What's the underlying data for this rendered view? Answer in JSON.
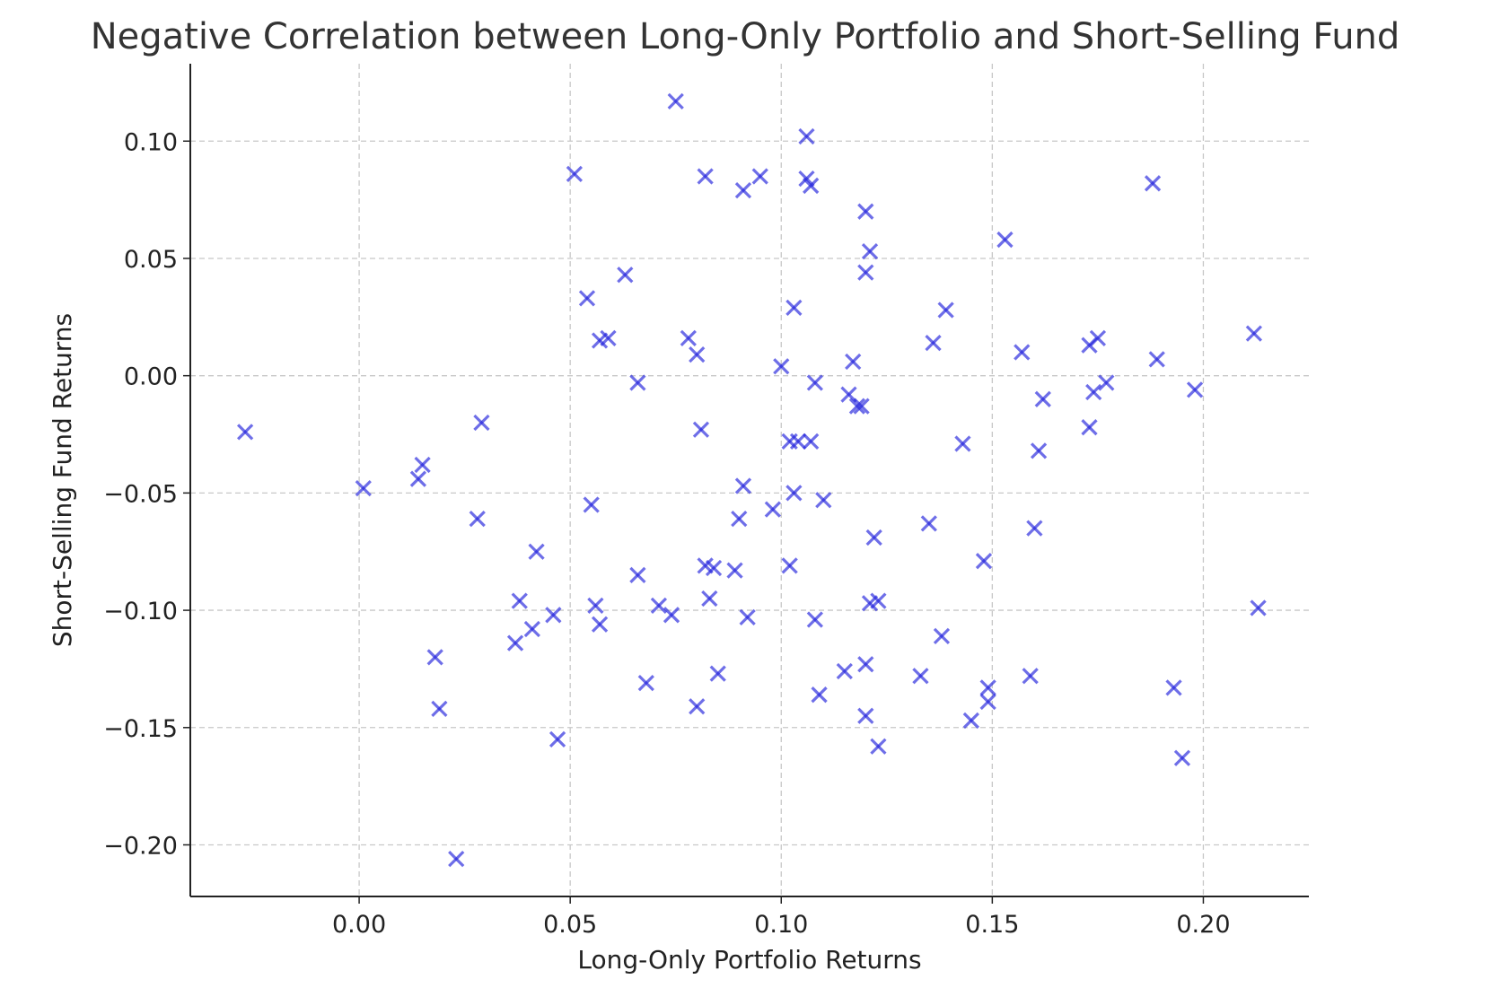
{
  "chart_data": {
    "type": "scatter",
    "title": "Negative Correlation between Long-Only Portfolio and Short-Selling Fund",
    "xlabel": "Long-Only Portfolio Returns",
    "ylabel": "Short-Selling Fund Returns",
    "xlim": [
      -0.04,
      0.225
    ],
    "ylim": [
      -0.222,
      0.133
    ],
    "xticks": [
      0.0,
      0.05,
      0.1,
      0.15,
      0.2
    ],
    "xtick_labels": [
      "0.00",
      "0.05",
      "0.10",
      "0.15",
      "0.20"
    ],
    "yticks": [
      0.1,
      0.05,
      0.0,
      -0.05,
      -0.1,
      -0.15,
      -0.2
    ],
    "ytick_labels": [
      "0.10",
      "0.05",
      "0.00",
      "−0.05",
      "−0.10",
      "−0.15",
      "−0.20"
    ],
    "grid": true,
    "marker": "x",
    "marker_color": "#2222dd",
    "points": [
      [
        -0.027,
        -0.024
      ],
      [
        0.001,
        -0.048
      ],
      [
        0.014,
        -0.044
      ],
      [
        0.015,
        -0.038
      ],
      [
        0.018,
        -0.12
      ],
      [
        0.019,
        -0.142
      ],
      [
        0.023,
        -0.206
      ],
      [
        0.028,
        -0.061
      ],
      [
        0.029,
        -0.02
      ],
      [
        0.037,
        -0.114
      ],
      [
        0.038,
        -0.096
      ],
      [
        0.041,
        -0.108
      ],
      [
        0.042,
        -0.075
      ],
      [
        0.046,
        -0.102
      ],
      [
        0.047,
        -0.155
      ],
      [
        0.051,
        0.086
      ],
      [
        0.054,
        0.033
      ],
      [
        0.055,
        -0.055
      ],
      [
        0.056,
        -0.098
      ],
      [
        0.057,
        -0.106
      ],
      [
        0.057,
        0.015
      ],
      [
        0.059,
        0.016
      ],
      [
        0.063,
        0.043
      ],
      [
        0.066,
        -0.003
      ],
      [
        0.066,
        -0.085
      ],
      [
        0.068,
        -0.131
      ],
      [
        0.071,
        -0.098
      ],
      [
        0.074,
        -0.102
      ],
      [
        0.075,
        0.117
      ],
      [
        0.078,
        0.016
      ],
      [
        0.08,
        0.009
      ],
      [
        0.08,
        -0.141
      ],
      [
        0.081,
        -0.023
      ],
      [
        0.082,
        0.085
      ],
      [
        0.082,
        -0.081
      ],
      [
        0.083,
        -0.095
      ],
      [
        0.084,
        -0.082
      ],
      [
        0.085,
        -0.127
      ],
      [
        0.089,
        -0.083
      ],
      [
        0.09,
        -0.061
      ],
      [
        0.091,
        -0.047
      ],
      [
        0.091,
        0.079
      ],
      [
        0.092,
        -0.103
      ],
      [
        0.095,
        0.085
      ],
      [
        0.098,
        -0.057
      ],
      [
        0.1,
        0.004
      ],
      [
        0.102,
        -0.081
      ],
      [
        0.102,
        -0.028
      ],
      [
        0.103,
        -0.05
      ],
      [
        0.103,
        0.029
      ],
      [
        0.104,
        -0.028
      ],
      [
        0.106,
        0.102
      ],
      [
        0.106,
        0.084
      ],
      [
        0.107,
        0.081
      ],
      [
        0.107,
        -0.028
      ],
      [
        0.108,
        -0.003
      ],
      [
        0.108,
        -0.104
      ],
      [
        0.109,
        -0.136
      ],
      [
        0.11,
        -0.053
      ],
      [
        0.115,
        -0.126
      ],
      [
        0.116,
        -0.008
      ],
      [
        0.117,
        0.006
      ],
      [
        0.118,
        -0.013
      ],
      [
        0.119,
        -0.013
      ],
      [
        0.12,
        0.07
      ],
      [
        0.12,
        0.044
      ],
      [
        0.12,
        -0.123
      ],
      [
        0.12,
        -0.145
      ],
      [
        0.121,
        0.053
      ],
      [
        0.121,
        -0.097
      ],
      [
        0.122,
        -0.069
      ],
      [
        0.123,
        -0.096
      ],
      [
        0.123,
        -0.158
      ],
      [
        0.133,
        -0.128
      ],
      [
        0.135,
        -0.063
      ],
      [
        0.136,
        0.014
      ],
      [
        0.138,
        -0.111
      ],
      [
        0.139,
        0.028
      ],
      [
        0.143,
        -0.029
      ],
      [
        0.145,
        -0.147
      ],
      [
        0.148,
        -0.079
      ],
      [
        0.149,
        -0.133
      ],
      [
        0.149,
        -0.139
      ],
      [
        0.153,
        0.058
      ],
      [
        0.157,
        0.01
      ],
      [
        0.159,
        -0.128
      ],
      [
        0.16,
        -0.065
      ],
      [
        0.161,
        -0.032
      ],
      [
        0.162,
        -0.01
      ],
      [
        0.173,
        0.013
      ],
      [
        0.173,
        -0.022
      ],
      [
        0.174,
        -0.007
      ],
      [
        0.175,
        0.016
      ],
      [
        0.177,
        -0.003
      ],
      [
        0.188,
        0.082
      ],
      [
        0.189,
        0.007
      ],
      [
        0.193,
        -0.133
      ],
      [
        0.195,
        -0.163
      ],
      [
        0.198,
        -0.006
      ],
      [
        0.212,
        0.018
      ],
      [
        0.213,
        -0.099
      ]
    ]
  }
}
